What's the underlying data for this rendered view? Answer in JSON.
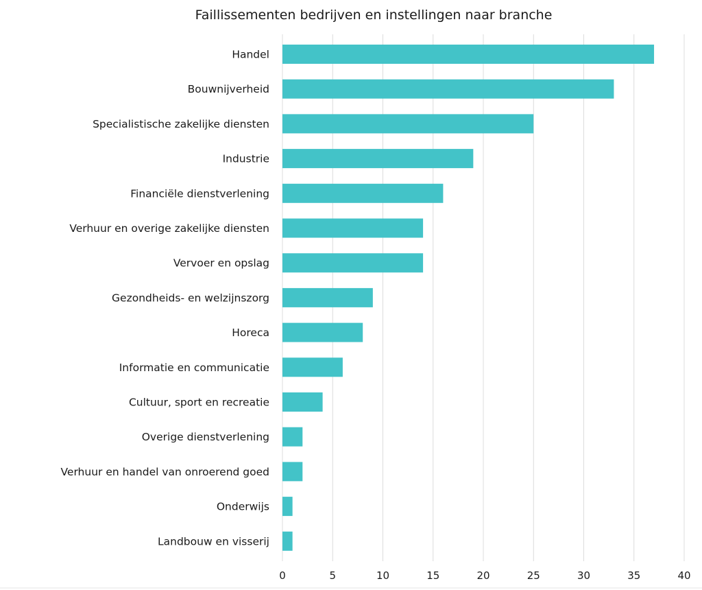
{
  "chart_data": {
    "type": "bar",
    "orientation": "horizontal",
    "title": "Faillissementen bedrijven en instellingen naar branche",
    "xlabel": "",
    "ylabel": "",
    "xlim": [
      0,
      40
    ],
    "x_ticks": [
      0,
      5,
      10,
      15,
      20,
      25,
      30,
      35,
      40
    ],
    "grid": "vertical",
    "bar_color": "#43c3c8",
    "categories": [
      "Handel",
      "Bouwnijverheid",
      "Specialistische zakelijke diensten",
      "Industrie",
      "Financiële dienstverlening",
      "Verhuur en overige zakelijke diensten",
      "Vervoer en opslag",
      "Gezondheids- en welzijnszorg",
      "Horeca",
      "Informatie en communicatie",
      "Cultuur, sport en recreatie",
      "Overige dienstverlening",
      "Verhuur en handel van onroerend goed",
      "Onderwijs",
      "Landbouw en visserij"
    ],
    "values": [
      37,
      33,
      25,
      19,
      16,
      14,
      14,
      9,
      8,
      6,
      4,
      2,
      2,
      1,
      1
    ]
  }
}
